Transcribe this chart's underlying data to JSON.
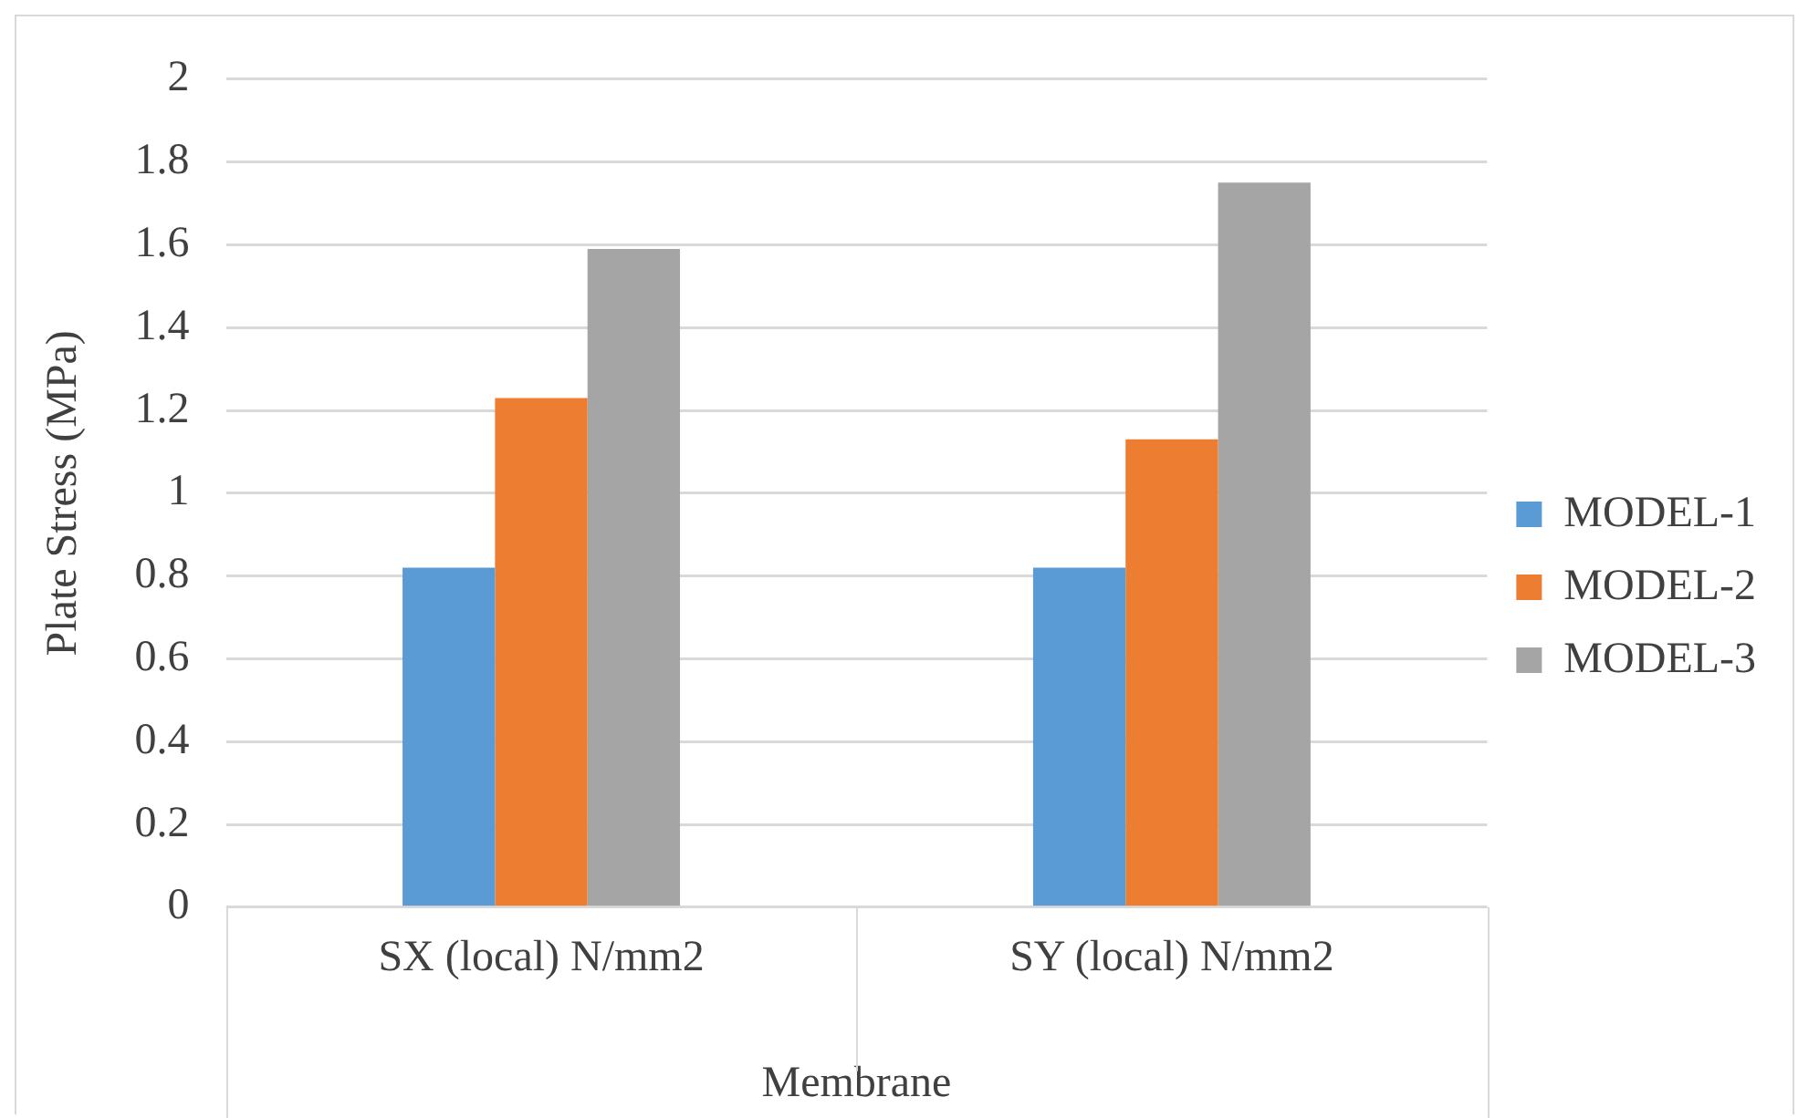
{
  "chart_data": {
    "type": "bar",
    "ylabel": "Plate Stress (MPa)",
    "xlabel": "Membrane",
    "categories": [
      "SX (local) N/mm2",
      "SY (local) N/mm2"
    ],
    "series": [
      {
        "name": "MODEL-1",
        "color": "#5b9bd5",
        "values": [
          0.82,
          0.82
        ]
      },
      {
        "name": "MODEL-2",
        "color": "#ed7d31",
        "values": [
          1.23,
          1.13
        ]
      },
      {
        "name": "MODEL-3",
        "color": "#a5a5a5",
        "values": [
          1.59,
          1.75
        ]
      }
    ],
    "ylim": [
      0,
      2
    ],
    "yticks": [
      0,
      0.2,
      0.4,
      0.6,
      0.8,
      1,
      1.2,
      1.4,
      1.6,
      1.8,
      2
    ],
    "grid": "y",
    "legend": "right"
  }
}
